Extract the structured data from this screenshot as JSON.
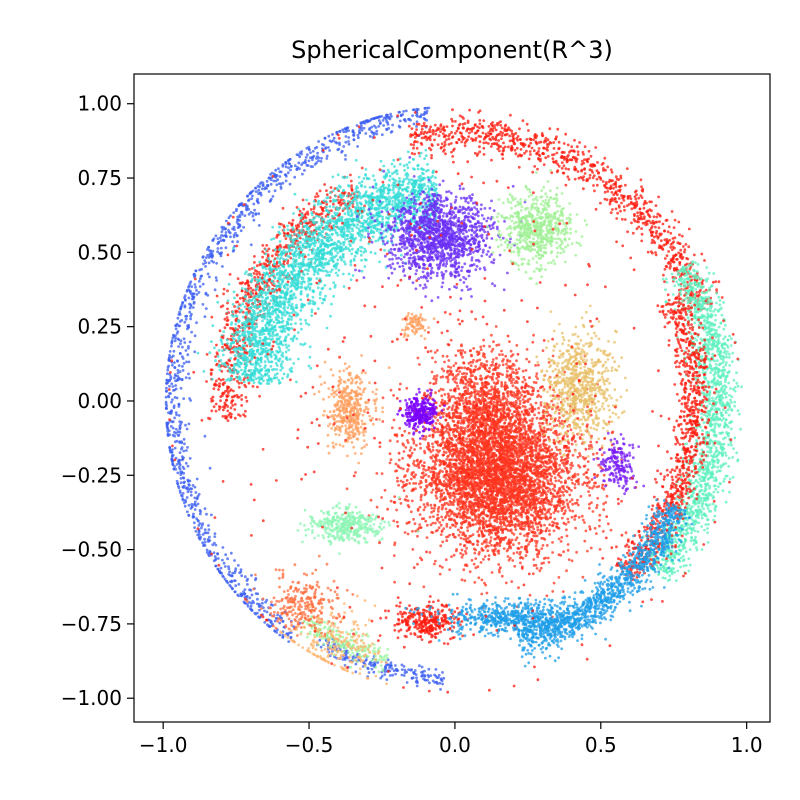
{
  "chart_data": {
    "type": "scatter",
    "title": "SphericalComponent(R^3)",
    "xlabel": "",
    "ylabel": "",
    "xlim": [
      -1.1,
      1.08
    ],
    "ylim": [
      -1.08,
      1.1
    ],
    "x_ticks": [
      -1.0,
      -0.5,
      0.0,
      0.5,
      1.0
    ],
    "x_tick_labels": [
      "−1.0",
      "−0.5",
      "0.0",
      "0.5",
      "1.0"
    ],
    "y_ticks": [
      1.0,
      0.75,
      0.5,
      0.25,
      0.0,
      -0.25,
      -0.5,
      -0.75,
      -1.0
    ],
    "y_tick_labels": [
      "1.00",
      "0.75",
      "0.50",
      "0.25",
      "0.00",
      "−0.25",
      "−0.50",
      "−0.75",
      "−1.00"
    ],
    "grid": false,
    "legend": "none",
    "colormap": "rainbow",
    "clusters": [
      {
        "shape": "ring",
        "center": [
          0.0,
          0.0
        ],
        "radius": 0.97,
        "theta_range": [
          95,
          235
        ],
        "thickness": 0.05,
        "color": "#3a5ef0",
        "n": 1100
      },
      {
        "shape": "ring",
        "center": [
          0.0,
          0.0
        ],
        "radius": 0.9,
        "theta_range": [
          20,
          100
        ],
        "thickness": 0.06,
        "color": "#ff1a0d",
        "n": 900
      },
      {
        "shape": "ring",
        "center": [
          0.0,
          0.0
        ],
        "radius": 0.78,
        "theta_range": [
          115,
          185
        ],
        "thickness": 0.07,
        "color": "#ff1a0d",
        "n": 700
      },
      {
        "shape": "ring",
        "center": [
          0.0,
          0.0
        ],
        "radius": 0.7,
        "theta_range": [
          95,
          175
        ],
        "thickness": 0.12,
        "color": "#34dcd7",
        "n": 2600
      },
      {
        "shape": "ring",
        "center": [
          0.0,
          0.0
        ],
        "radius": 0.9,
        "theta_range": [
          -40,
          30
        ],
        "thickness": 0.07,
        "color": "#5ef0be",
        "n": 1500
      },
      {
        "shape": "ring",
        "center": [
          0.0,
          0.0
        ],
        "radius": 0.82,
        "theta_range": [
          -45,
          25
        ],
        "thickness": 0.06,
        "color": "#ff1a0d",
        "n": 900
      },
      {
        "shape": "ring",
        "center": [
          0.0,
          0.0
        ],
        "radius": 0.84,
        "theta_range": [
          -75,
          -25
        ],
        "thickness": 0.06,
        "color": "#1e9ee8",
        "n": 1100
      },
      {
        "shape": "ring",
        "center": [
          0.0,
          0.0
        ],
        "radius": 0.93,
        "theta_range": [
          -120,
          -92
        ],
        "thickness": 0.03,
        "color": "#3a5ef0",
        "n": 200
      },
      {
        "shape": "ring",
        "center": [
          0.0,
          0.0
        ],
        "radius": 0.9,
        "theta_range": [
          -125,
          -105
        ],
        "thickness": 0.04,
        "color": "#9cf5a0",
        "n": 200
      },
      {
        "shape": "blob",
        "center": [
          -0.52,
          -0.68
        ],
        "spread": [
          0.06,
          0.05
        ],
        "color": "#ff6e3e",
        "n": 250
      },
      {
        "shape": "blob",
        "center": [
          -0.4,
          -0.82
        ],
        "spread": [
          0.08,
          0.06
        ],
        "color": "#ffb46e",
        "n": 200
      },
      {
        "shape": "blob",
        "center": [
          -0.05,
          0.55
        ],
        "spread": [
          0.09,
          0.07
        ],
        "color": "#6b2ff5",
        "n": 1300
      },
      {
        "shape": "blob",
        "center": [
          0.28,
          0.58
        ],
        "spread": [
          0.06,
          0.06
        ],
        "color": "#a0f096",
        "n": 600
      },
      {
        "shape": "blob",
        "center": [
          0.15,
          -0.25
        ],
        "spread": [
          0.14,
          0.13
        ],
        "color": "#ff3520",
        "n": 4500
      },
      {
        "shape": "blob",
        "center": [
          0.1,
          0.0
        ],
        "spread": [
          0.09,
          0.09
        ],
        "color": "#ff3520",
        "n": 900
      },
      {
        "shape": "blob",
        "center": [
          0.43,
          0.05
        ],
        "spread": [
          0.06,
          0.09
        ],
        "color": "#e8c06a",
        "n": 700
      },
      {
        "shape": "blob",
        "center": [
          -0.36,
          -0.03
        ],
        "spread": [
          0.04,
          0.06
        ],
        "color": "#ffa060",
        "n": 400
      },
      {
        "shape": "blob",
        "center": [
          -0.14,
          0.26
        ],
        "spread": [
          0.02,
          0.02
        ],
        "color": "#ffa060",
        "n": 80
      },
      {
        "shape": "blob",
        "center": [
          -0.12,
          -0.04
        ],
        "spread": [
          0.03,
          0.03
        ],
        "color": "#7a00ff",
        "n": 300
      },
      {
        "shape": "blob",
        "center": [
          0.56,
          -0.21
        ],
        "spread": [
          0.03,
          0.04
        ],
        "color": "#7a1ef5",
        "n": 180
      },
      {
        "shape": "blob",
        "center": [
          -0.38,
          -0.42
        ],
        "spread": [
          0.06,
          0.03
        ],
        "color": "#8ef5b4",
        "n": 350
      },
      {
        "shape": "blob",
        "center": [
          -0.1,
          -0.74
        ],
        "spread": [
          0.06,
          0.03
        ],
        "color": "#ff1a0d",
        "n": 300
      },
      {
        "shape": "blob",
        "center": [
          0.2,
          -0.73
        ],
        "spread": [
          0.12,
          0.03
        ],
        "color": "#1e9ee8",
        "n": 600
      },
      {
        "shape": "blob",
        "center": [
          0.0,
          0.0
        ],
        "spread": [
          0.5,
          0.5
        ],
        "color": "#ff1a0d",
        "n": 400
      }
    ]
  }
}
